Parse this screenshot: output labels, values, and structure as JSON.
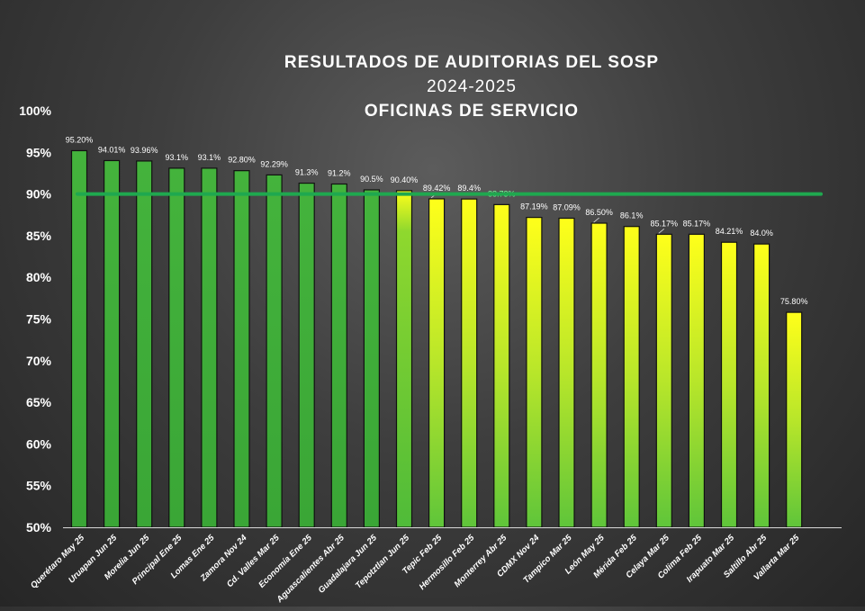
{
  "chart_data": {
    "type": "bar",
    "title": "RESULTADOS DE AUDITORIAS DEL SOSP",
    "subtitle": "2024-2025",
    "subtitle2": "OFICINAS DE SERVICIO",
    "xlabel": "",
    "ylabel": "",
    "ylim": [
      50,
      100
    ],
    "yticks": [
      100,
      95,
      90,
      85,
      80,
      75,
      70,
      65,
      60,
      55,
      50
    ],
    "ytick_labels": [
      "100%",
      "95%",
      "90%",
      "85%",
      "80%",
      "75%",
      "70%",
      "65%",
      "60%",
      "55%",
      "50%"
    ],
    "grid": false,
    "target_line": 90,
    "categories": [
      "Querétaro May 25",
      "Uruapan Jun 25",
      "Morelia Jun 25",
      "Principal Ene 25",
      "Lomas Ene 25",
      "Zamora Nov 24",
      "Cd. Valles Mar 25",
      "Economía Ene 25",
      "Aguascalientes Abr 25",
      "Guadalajara Jun 25",
      "Tepotztlan Jun 25",
      "Tepic Feb 25",
      "Hermosillo Feb 25",
      "Monterrey Abr 25",
      "CDMX Nov 24",
      "Tampico Mar 25",
      "León May 25",
      "Mérida Feb 25",
      "Celaya Mar 25",
      "Colima Feb 25",
      "Irapuato Mar 25",
      "Saltillo Abr 25",
      "Vallarta Mar 25"
    ],
    "values": [
      95.2,
      94.01,
      93.96,
      93.1,
      93.1,
      92.8,
      92.29,
      91.3,
      91.2,
      90.5,
      90.4,
      89.42,
      89.4,
      88.73,
      87.19,
      87.09,
      86.5,
      86.1,
      85.17,
      85.17,
      84.21,
      84.0,
      75.8
    ],
    "value_labels": [
      "95.20%",
      "94.01%",
      "93.96%",
      "93.1%",
      "93.1%",
      "92.80%",
      "92.29%",
      "91.3%",
      "91.2%",
      "90.5%",
      "90.40%",
      "89.42%",
      "89.4%",
      "88.73%",
      "87.19%",
      "87.09%",
      "86.50%",
      "86.1%",
      "85.17%",
      "85.17%",
      "84.21%",
      "84.0%",
      "75.80%"
    ],
    "colors": {
      "above_target": "#3fae3a",
      "below_target_top": "#ffff1a",
      "below_target_mid": "#a6e02c",
      "target_line": "#1fa84f",
      "text": "#ffffff",
      "axis": "#d9d9d9"
    }
  }
}
